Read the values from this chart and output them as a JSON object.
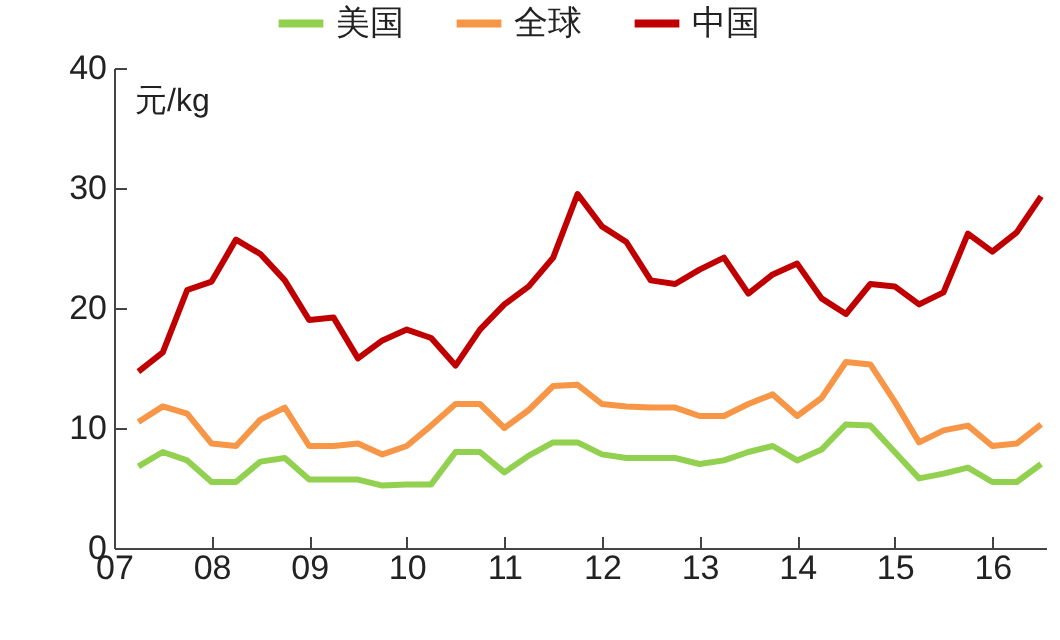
{
  "chart_data": {
    "type": "line",
    "ylabel": "元/kg",
    "x": [
      2007.25,
      2007.5,
      2007.75,
      2008,
      2008.25,
      2008.5,
      2008.75,
      2009,
      2009.25,
      2009.5,
      2009.75,
      2010,
      2010.25,
      2010.5,
      2010.75,
      2011,
      2011.25,
      2011.5,
      2011.75,
      2012,
      2012.25,
      2012.5,
      2012.75,
      2013,
      2013.25,
      2013.5,
      2013.75,
      2014,
      2014.25,
      2014.5,
      2014.75,
      2015,
      2015.25,
      2015.5,
      2015.75,
      2016,
      2016.25,
      2016.5
    ],
    "series": [
      {
        "name": "美国",
        "color": "#92d050",
        "values": [
          6.8,
          8,
          7.3,
          5.5,
          5.5,
          7.2,
          7.5,
          5.7,
          5.7,
          5.7,
          5.2,
          5.3,
          5.3,
          8,
          8,
          6.3,
          7.7,
          8.8,
          8.8,
          7.8,
          7.5,
          7.5,
          7.5,
          7,
          7.3,
          8,
          8.5,
          7.3,
          8.2,
          10.3,
          10.2,
          8,
          5.8,
          6.2,
          6.7,
          5.5,
          5.5,
          7
        ]
      },
      {
        "name": "全球",
        "color": "#f79646",
        "values": [
          10.5,
          11.8,
          11.2,
          8.7,
          8.5,
          10.7,
          11.7,
          8.5,
          8.5,
          8.7,
          7.8,
          8.5,
          10.2,
          12,
          12,
          10,
          11.5,
          13.5,
          13.6,
          12,
          11.8,
          11.7,
          11.7,
          11,
          11,
          12,
          12.8,
          11,
          12.5,
          15.5,
          15.3,
          12.2,
          8.8,
          9.8,
          10.2,
          8.5,
          8.7,
          10.3
        ]
      },
      {
        "name": "中国",
        "color": "#c00000",
        "values": [
          14.7,
          16.3,
          21.5,
          22.2,
          25.7,
          24.5,
          22.3,
          19,
          19.2,
          15.8,
          17.3,
          18.2,
          17.5,
          15.2,
          18.2,
          20.3,
          21.8,
          24.2,
          29.5,
          26.8,
          25.5,
          22.3,
          22,
          23.2,
          24.2,
          21.2,
          22.8,
          23.7,
          20.8,
          19.5,
          22,
          21.8,
          20.3,
          21.3,
          26.2,
          24.7,
          26.3,
          29.3
        ]
      }
    ],
    "xlim": [
      2007,
      2016.55
    ],
    "xticks": [
      {
        "value": 2007,
        "label": "07"
      },
      {
        "value": 2008,
        "label": "08"
      },
      {
        "value": 2009,
        "label": "09"
      },
      {
        "value": 2010,
        "label": "10"
      },
      {
        "value": 2011,
        "label": "11"
      },
      {
        "value": 2012,
        "label": "12"
      },
      {
        "value": 2013,
        "label": "13"
      },
      {
        "value": 2014,
        "label": "14"
      },
      {
        "value": 2015,
        "label": "15"
      },
      {
        "value": 2016,
        "label": "16"
      }
    ],
    "ylim": [
      0,
      40
    ],
    "yticks": [
      0,
      10,
      20,
      30,
      40
    ],
    "grid": false,
    "legend": "top",
    "marker": "none",
    "line_style": "solid"
  }
}
